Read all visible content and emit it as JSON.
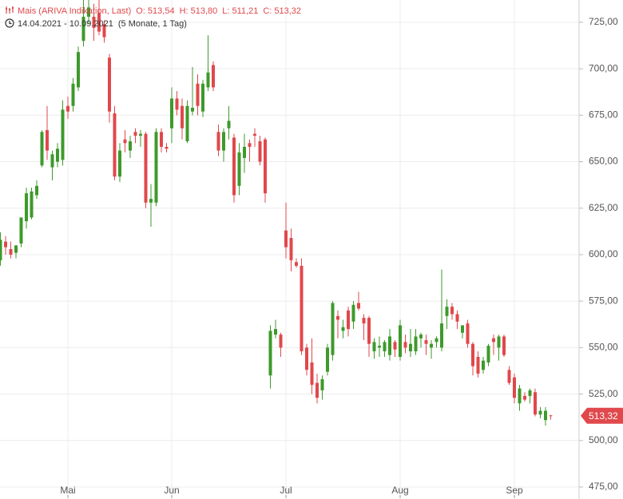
{
  "header": {
    "instrument": "Mais (ARIVA Indikation, Last)",
    "ohlc": [
      "O: 513,54",
      "H: 513,80",
      "L: 511,21",
      "C: 513,32"
    ],
    "range": "14.04.2021 - 10.09.2021",
    "period": "(5 Monate, 1 Tag)"
  },
  "chart_data": {
    "type": "candlestick",
    "categories": [
      null,
      null,
      null,
      null,
      null,
      null,
      null,
      null,
      null,
      null,
      null,
      null,
      null,
      "Mai",
      null,
      null,
      null,
      null,
      null,
      null,
      null,
      null,
      null,
      null,
      null,
      null,
      null,
      null,
      null,
      null,
      null,
      null,
      null,
      "Jun",
      null,
      null,
      null,
      null,
      null,
      null,
      null,
      null,
      null,
      null,
      null,
      null,
      null,
      null,
      null,
      null,
      null,
      null,
      null,
      null,
      null,
      "Jul",
      null,
      null,
      null,
      null,
      null,
      null,
      null,
      null,
      null,
      null,
      null,
      null,
      null,
      null,
      null,
      null,
      null,
      null,
      null,
      null,
      null,
      "Aug",
      null,
      null,
      null,
      null,
      null,
      null,
      null,
      null,
      null,
      null,
      null,
      null,
      null,
      null,
      null,
      null,
      null,
      null,
      null,
      null,
      null,
      "Sep",
      null,
      null,
      null,
      null,
      null,
      null,
      null
    ],
    "open": [
      597,
      607,
      603,
      601,
      606,
      618,
      620,
      632,
      648,
      667,
      647,
      650,
      651,
      680,
      680,
      690,
      715,
      728,
      728,
      730,
      724,
      706,
      676,
      642,
      662,
      656,
      666,
      664,
      665,
      628,
      628,
      666,
      658,
      668,
      684,
      680,
      661,
      677,
      692,
      677,
      690,
      702,
      666,
      656,
      668,
      663,
      637,
      652,
      660,
      665,
      661,
      662,
      535,
      557,
      557,
      613,
      609,
      596,
      594,
      550,
      542,
      531,
      527,
      537,
      546,
      567,
      559,
      570,
      564,
      574,
      566,
      566,
      548,
      550,
      548,
      546,
      553,
      545,
      553,
      548,
      548,
      555,
      554,
      550,
      553,
      550,
      567,
      572,
      568,
      558,
      563,
      552,
      545,
      538,
      542,
      555,
      550,
      556,
      538,
      534,
      520,
      524,
      524,
      526,
      514,
      511,
      513.54
    ],
    "high": [
      612,
      610,
      607,
      605,
      620,
      636,
      636,
      640,
      667,
      680,
      656,
      660,
      683,
      685,
      695,
      712,
      737,
      737,
      735,
      737,
      726,
      708,
      680,
      660,
      667,
      664,
      668,
      667,
      666,
      638,
      668,
      668,
      660,
      690,
      688,
      684,
      683,
      701,
      697,
      694,
      718,
      704,
      670,
      668,
      680,
      665,
      660,
      665,
      662,
      668,
      664,
      663,
      562,
      565,
      558,
      628,
      614,
      598,
      598,
      552,
      555,
      536,
      535,
      552,
      575,
      570,
      565,
      572,
      575,
      580,
      568,
      567,
      555,
      556,
      554,
      560,
      554,
      565,
      557,
      560,
      560,
      558,
      557,
      554,
      556,
      592,
      576,
      574,
      570,
      562,
      565,
      553,
      548,
      545,
      552,
      557,
      557,
      557,
      540,
      536,
      530,
      526,
      528,
      528,
      518,
      518,
      513.8
    ],
    "low": [
      594,
      600,
      598,
      598,
      604,
      614,
      619,
      630,
      647,
      651,
      640,
      647,
      648,
      673,
      677,
      688,
      712,
      724,
      715,
      718,
      714,
      671,
      640,
      639,
      655,
      652,
      660,
      658,
      625,
      615,
      626,
      655,
      655,
      660,
      675,
      662,
      660,
      675,
      675,
      674,
      688,
      688,
      653,
      650,
      662,
      628,
      632,
      644,
      650,
      658,
      648,
      628,
      528,
      555,
      545,
      598,
      591,
      593,
      546,
      535,
      525,
      520,
      522,
      535,
      543,
      555,
      555,
      556,
      560,
      570,
      554,
      545,
      544,
      545,
      545,
      543,
      545,
      543,
      547,
      545,
      546,
      550,
      546,
      544,
      550,
      548,
      560,
      565,
      560,
      555,
      550,
      535,
      534,
      536,
      540,
      546,
      543,
      545,
      530,
      520,
      516,
      521,
      520,
      513,
      512,
      508,
      511.21
    ],
    "close": [
      608,
      604,
      600,
      605,
      620,
      633,
      634,
      637,
      666,
      656,
      654,
      657,
      678,
      677,
      692,
      709,
      728,
      733,
      722,
      720,
      717,
      677,
      642,
      656,
      660,
      661,
      664,
      665,
      628,
      630,
      666,
      658,
      657,
      684,
      678,
      668,
      680,
      679,
      680,
      692,
      698,
      690,
      656,
      666,
      672,
      632,
      655,
      658,
      658,
      664,
      650,
      633,
      559,
      560,
      550,
      604,
      597,
      594,
      548,
      538,
      530,
      523,
      533,
      550,
      574,
      565,
      561,
      560,
      573,
      571,
      563,
      552,
      553,
      551,
      553,
      556,
      549,
      562,
      550,
      552,
      556,
      557,
      552,
      552,
      555,
      563,
      572,
      568,
      564,
      562,
      552,
      540,
      536,
      543,
      551,
      553,
      556,
      546,
      531,
      523,
      528,
      522,
      527,
      514,
      516,
      516,
      513.32
    ],
    "up_color": "#3d9a2b",
    "down_color": "#e0484c",
    "current_price_label": "513,32",
    "ylim": [
      470.7,
      737.0
    ],
    "yticks": [
      {
        "value": 475,
        "label": "475,00"
      },
      {
        "value": 500,
        "label": "500,00"
      },
      {
        "value": 525,
        "label": "525,00"
      },
      {
        "value": 550,
        "label": "550,00"
      },
      {
        "value": 575,
        "label": "575,00"
      },
      {
        "value": 600,
        "label": "600,00"
      },
      {
        "value": 625,
        "label": "625,00"
      },
      {
        "value": 650,
        "label": "650,00"
      },
      {
        "value": 675,
        "label": "675,00"
      },
      {
        "value": 700,
        "label": "700,00"
      },
      {
        "value": 725,
        "label": "725,00"
      }
    ],
    "grid": true
  }
}
